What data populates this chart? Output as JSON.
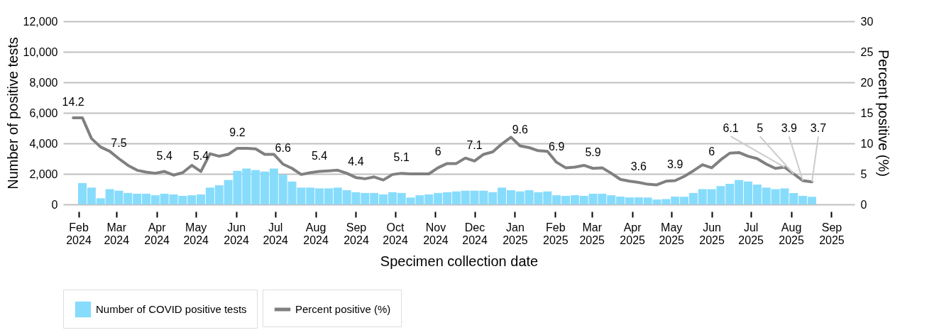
{
  "chart_data": {
    "type": "bar",
    "xlabel": "Specimen collection date",
    "ylabel": "Number of positive tests",
    "y2label": "Percent positive (%)",
    "grid": "y",
    "legend": "bottom",
    "x": [
      "2024-02-04",
      "2024-02-11",
      "2024-02-18",
      "2024-02-25",
      "2024-03-03",
      "2024-03-10",
      "2024-03-17",
      "2024-03-24",
      "2024-03-31",
      "2024-04-07",
      "2024-04-14",
      "2024-04-21",
      "2024-04-28",
      "2024-05-05",
      "2024-05-12",
      "2024-05-19",
      "2024-05-26",
      "2024-06-02",
      "2024-06-09",
      "2024-06-16",
      "2024-06-23",
      "2024-06-30",
      "2024-07-07",
      "2024-07-14",
      "2024-07-21",
      "2024-07-28",
      "2024-08-04",
      "2024-08-11",
      "2024-08-18",
      "2024-08-25",
      "2024-09-01",
      "2024-09-08",
      "2024-09-15",
      "2024-09-22",
      "2024-09-29",
      "2024-10-06",
      "2024-10-13",
      "2024-10-20",
      "2024-10-27",
      "2024-11-03",
      "2024-11-10",
      "2024-11-17",
      "2024-11-24",
      "2024-12-01",
      "2024-12-08",
      "2024-12-15",
      "2024-12-22",
      "2024-12-29",
      "2025-01-05",
      "2025-01-12",
      "2025-01-19",
      "2025-01-26",
      "2025-02-02",
      "2025-02-09",
      "2025-02-16",
      "2025-02-23",
      "2025-03-02",
      "2025-03-09",
      "2025-03-16",
      "2025-03-23",
      "2025-03-30",
      "2025-04-06",
      "2025-04-13",
      "2025-04-20",
      "2025-04-27",
      "2025-05-04",
      "2025-05-11",
      "2025-05-18",
      "2025-05-25",
      "2025-06-01",
      "2025-06-08",
      "2025-06-15",
      "2025-06-22",
      "2025-06-29",
      "2025-07-06",
      "2025-07-13",
      "2025-07-20",
      "2025-07-27",
      "2025-08-03",
      "2025-08-10",
      "2025-08-17"
    ],
    "xlim": [
      "2024-01-23",
      "2025-09-16"
    ],
    "xticks": [
      {
        "value": "2024-02-01",
        "label": "Feb 2024"
      },
      {
        "value": "2024-03-01",
        "label": "Mar 2024"
      },
      {
        "value": "2024-04-01",
        "label": "Apr 2024"
      },
      {
        "value": "2024-05-01",
        "label": "May 2024"
      },
      {
        "value": "2024-06-01",
        "label": "Jun 2024"
      },
      {
        "value": "2024-07-01",
        "label": "Jul 2024"
      },
      {
        "value": "2024-08-01",
        "label": "Aug 2024"
      },
      {
        "value": "2024-09-01",
        "label": "Sep 2024"
      },
      {
        "value": "2024-10-01",
        "label": "Oct 2024"
      },
      {
        "value": "2024-11-01",
        "label": "Nov 2024"
      },
      {
        "value": "2024-12-01",
        "label": "Dec 2024"
      },
      {
        "value": "2025-01-01",
        "label": "Jan 2025"
      },
      {
        "value": "2025-02-01",
        "label": "Feb 2025"
      },
      {
        "value": "2025-03-01",
        "label": "Mar 2025"
      },
      {
        "value": "2025-04-01",
        "label": "Apr 2025"
      },
      {
        "value": "2025-05-01",
        "label": "May 2025"
      },
      {
        "value": "2025-06-01",
        "label": "Jun 2025"
      },
      {
        "value": "2025-07-01",
        "label": "Jul 2025"
      },
      {
        "value": "2025-08-01",
        "label": "Aug 2025"
      },
      {
        "value": "2025-09-01",
        "label": "Sep 2025"
      }
    ],
    "ylim": [
      0,
      12000
    ],
    "yticks": [
      {
        "value": 0,
        "label": "0"
      },
      {
        "value": 2000,
        "label": "2,000"
      },
      {
        "value": 4000,
        "label": "4,000"
      },
      {
        "value": 6000,
        "label": "6,000"
      },
      {
        "value": 8000,
        "label": "8,000"
      },
      {
        "value": 10000,
        "label": "10,000"
      },
      {
        "value": 12000,
        "label": "12,000"
      }
    ],
    "y2lim": [
      0,
      30
    ],
    "y2ticks": [
      0,
      5,
      10,
      15,
      20,
      25,
      30
    ],
    "series": [
      {
        "name": "Number of COVID positive tests",
        "color": "#87dcfc",
        "values": [
          1400,
          1100,
          400,
          1000,
          900,
          750,
          700,
          700,
          600,
          700,
          650,
          560,
          600,
          650,
          1100,
          1250,
          1600,
          2200,
          2350,
          2250,
          2150,
          2350,
          1950,
          1500,
          1100,
          1100,
          1050,
          1050,
          1100,
          930,
          800,
          750,
          750,
          650,
          800,
          750,
          450,
          600,
          650,
          750,
          800,
          850,
          900,
          900,
          900,
          800,
          1100,
          930,
          850,
          930,
          800,
          850,
          600,
          560,
          600,
          560,
          700,
          700,
          600,
          510,
          460,
          460,
          450,
          320,
          350,
          510,
          500,
          750,
          1000,
          1000,
          1200,
          1350,
          1600,
          1500,
          1300,
          1100,
          1000,
          1050,
          750,
          560,
          500
        ]
      },
      {
        "name": "Percent positive (%)",
        "type": "line",
        "axis": "y2",
        "color": "#808080",
        "line_style": "solid",
        "x": [
          "2024-01-28",
          "2024-02-04",
          "2024-02-11",
          "2024-02-18",
          "2024-02-25",
          "2024-03-03",
          "2024-03-10",
          "2024-03-17",
          "2024-03-24",
          "2024-03-31",
          "2024-04-07",
          "2024-04-14",
          "2024-04-21",
          "2024-04-28",
          "2024-05-05",
          "2024-05-12",
          "2024-05-19",
          "2024-05-26",
          "2024-06-02",
          "2024-06-09",
          "2024-06-16",
          "2024-06-23",
          "2024-06-30",
          "2024-07-07",
          "2024-07-14",
          "2024-07-21",
          "2024-07-28",
          "2024-08-04",
          "2024-08-11",
          "2024-08-18",
          "2024-08-25",
          "2024-09-01",
          "2024-09-08",
          "2024-09-15",
          "2024-09-22",
          "2024-09-29",
          "2024-10-06",
          "2024-10-13",
          "2024-10-20",
          "2024-10-27",
          "2024-11-03",
          "2024-11-10",
          "2024-11-17",
          "2024-11-24",
          "2024-12-01",
          "2024-12-08",
          "2024-12-15",
          "2024-12-22",
          "2024-12-29",
          "2025-01-05",
          "2025-01-12",
          "2025-01-19",
          "2025-01-26",
          "2025-02-02",
          "2025-02-09",
          "2025-02-16",
          "2025-02-23",
          "2025-03-02",
          "2025-03-09",
          "2025-03-16",
          "2025-03-23",
          "2025-03-30",
          "2025-04-06",
          "2025-04-13",
          "2025-04-20",
          "2025-04-27",
          "2025-05-04",
          "2025-05-11",
          "2025-05-18",
          "2025-05-25",
          "2025-06-01",
          "2025-06-08",
          "2025-06-15",
          "2025-06-22",
          "2025-06-29",
          "2025-07-06",
          "2025-07-13",
          "2025-07-20",
          "2025-07-27",
          "2025-08-03",
          "2025-08-10",
          "2025-08-17"
        ],
        "values": [
          14.2,
          14.2,
          10.8,
          9.4,
          8.7,
          7.5,
          6.4,
          5.6,
          5.3,
          5.1,
          5.4,
          4.8,
          5.2,
          6.4,
          5.4,
          8.3,
          7.9,
          8.2,
          9.2,
          9.2,
          9.1,
          8.2,
          8.2,
          6.6,
          5.9,
          4.9,
          5.2,
          5.4,
          5.5,
          5.6,
          5.1,
          4.4,
          4.2,
          4.5,
          4.0,
          4.9,
          5.1,
          5.0,
          5.0,
          5.0,
          6,
          6.7,
          6.7,
          7.6,
          7.1,
          8.2,
          8.6,
          9.9,
          11.0,
          9.6,
          9.3,
          8.8,
          8.7,
          6.9,
          6.0,
          6.1,
          6.4,
          5.9,
          6.0,
          5.1,
          4.1,
          3.8,
          3.6,
          3.3,
          3.2,
          3.8,
          3.9,
          4.6,
          5.5,
          6.5,
          6,
          7.3,
          8.4,
          8.5,
          7.9,
          7.5,
          6.6,
          5.9,
          6.1,
          5,
          3.9,
          3.7
        ],
        "value_labels": [
          "14.2",
          null,
          null,
          null,
          null,
          "7.5",
          null,
          null,
          null,
          null,
          "5.4",
          null,
          null,
          null,
          "5.4",
          null,
          null,
          null,
          "9.2",
          null,
          null,
          null,
          null,
          "6.6",
          null,
          null,
          null,
          "5.4",
          null,
          null,
          null,
          "4.4",
          null,
          null,
          null,
          null,
          "5.1",
          null,
          null,
          null,
          "6",
          null,
          null,
          null,
          "7.1",
          null,
          null,
          null,
          null,
          "9.6",
          null,
          null,
          null,
          "6.9",
          null,
          null,
          null,
          "5.9",
          null,
          null,
          null,
          null,
          "3.6",
          null,
          null,
          null,
          "3.9",
          null,
          null,
          null,
          "6",
          null,
          null,
          null,
          null,
          null,
          null,
          null,
          "6.1",
          "5",
          "3.9",
          "3.7"
        ]
      }
    ]
  }
}
